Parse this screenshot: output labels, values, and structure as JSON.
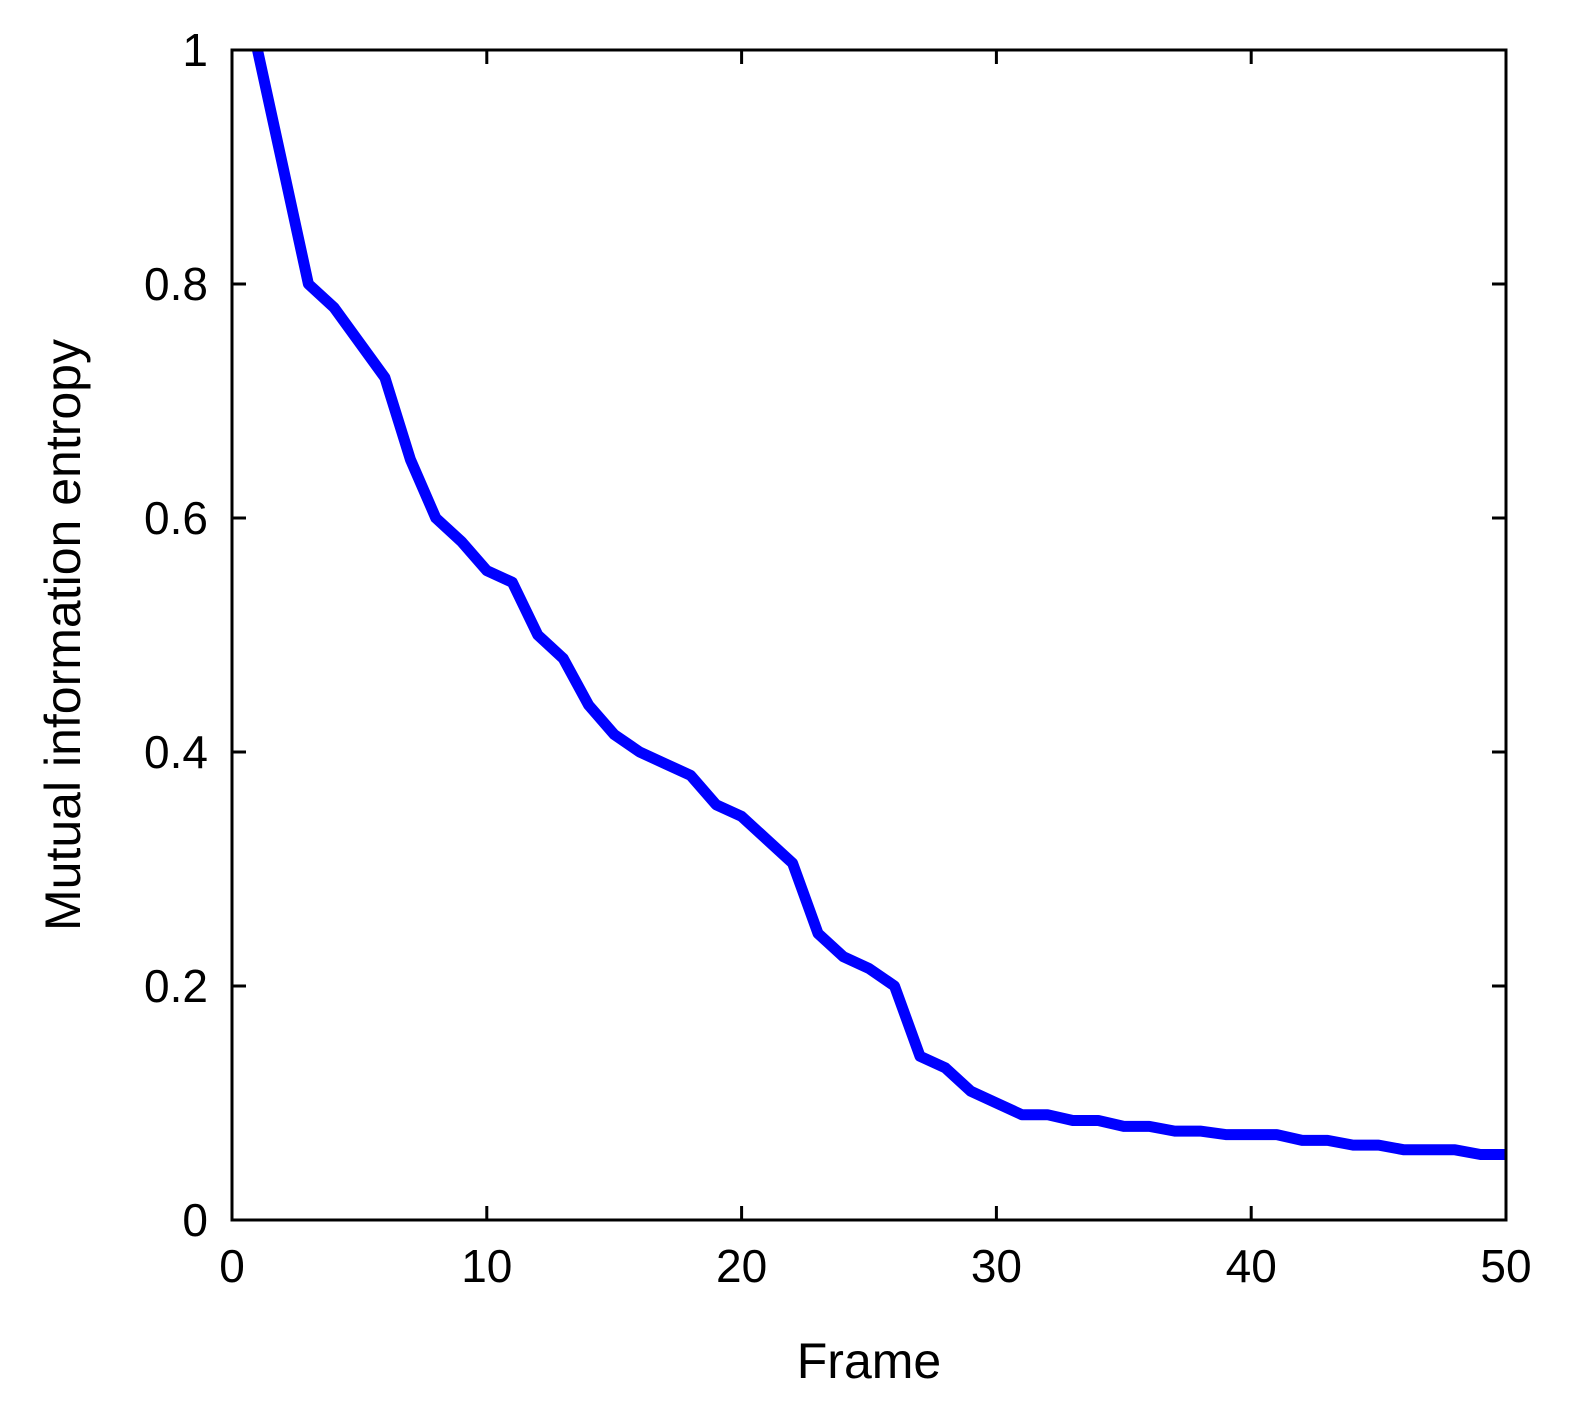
{
  "chart_data": {
    "type": "line",
    "title": "",
    "xlabel": "Frame",
    "ylabel": "Mutual information entropy",
    "xlim": [
      0,
      50
    ],
    "ylim": [
      0,
      1
    ],
    "xticks": [
      0,
      10,
      20,
      30,
      40,
      50
    ],
    "xtick_labels": [
      "0",
      "10",
      "20",
      "30",
      "40",
      "50"
    ],
    "yticks": [
      0,
      0.2,
      0.4,
      0.6,
      0.8,
      1
    ],
    "ytick_labels": [
      "0",
      "0.2",
      "0.4",
      "0.6",
      "0.8",
      "1"
    ],
    "grid": false,
    "legend": "none",
    "series": [
      {
        "color": "#0000ff",
        "x": [
          1,
          2,
          3,
          4,
          5,
          6,
          7,
          8,
          9,
          10,
          11,
          12,
          13,
          14,
          15,
          16,
          17,
          18,
          19,
          20,
          21,
          22,
          23,
          24,
          25,
          26,
          27,
          28,
          29,
          30,
          31,
          32,
          33,
          34,
          35,
          36,
          37,
          38,
          39,
          40,
          41,
          42,
          43,
          44,
          45,
          46,
          47,
          48,
          49,
          50
        ],
        "y": [
          1.0,
          0.9,
          0.8,
          0.78,
          0.75,
          0.72,
          0.65,
          0.6,
          0.58,
          0.555,
          0.545,
          0.5,
          0.48,
          0.44,
          0.415,
          0.4,
          0.39,
          0.38,
          0.355,
          0.345,
          0.325,
          0.305,
          0.245,
          0.225,
          0.215,
          0.2,
          0.14,
          0.13,
          0.11,
          0.1,
          0.09,
          0.09,
          0.085,
          0.085,
          0.08,
          0.08,
          0.076,
          0.076,
          0.073,
          0.073,
          0.073,
          0.068,
          0.068,
          0.064,
          0.064,
          0.06,
          0.06,
          0.06,
          0.056,
          0.056
        ]
      }
    ]
  }
}
